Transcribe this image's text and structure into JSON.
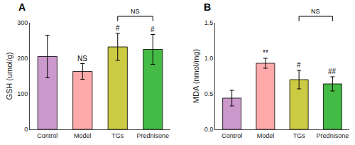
{
  "chart_data": [
    {
      "type": "bar",
      "title": "A",
      "categories": [
        "Control",
        "Model",
        "TGs",
        "Prednisone"
      ],
      "values": [
        205,
        163,
        232,
        225
      ],
      "errors": [
        60,
        22,
        38,
        42
      ],
      "colors": [
        "#cc99cc",
        "#ffaaaa",
        "#cccc44",
        "#44bb44"
      ],
      "ylabel": "GSH (umol/g)",
      "ylim": [
        0,
        300
      ],
      "yticks": [
        0,
        100,
        200,
        300
      ],
      "grid": false,
      "annotations": [
        {
          "text": "NS",
          "category": "Model"
        },
        {
          "text": "#",
          "category": "TGs"
        },
        {
          "text": "#",
          "category": "Prednisone"
        },
        {
          "text": "NS",
          "bracket": [
            "TGs",
            "Prednisone"
          ]
        }
      ]
    },
    {
      "type": "bar",
      "title": "B",
      "categories": [
        "Control",
        "Model",
        "TGs",
        "Prednisone"
      ],
      "values": [
        0.44,
        0.93,
        0.7,
        0.64
      ],
      "errors": [
        0.11,
        0.07,
        0.13,
        0.1
      ],
      "colors": [
        "#cc99cc",
        "#ffaaaa",
        "#cccc44",
        "#44bb44"
      ],
      "ylabel": "MDA (nmol/mg)",
      "ylim": [
        0.0,
        1.5
      ],
      "yticks": [
        {
          "value": 0,
          "label": "0.0"
        },
        0.5,
        {
          "value": 1,
          "label": "1.0"
        },
        1.5
      ],
      "grid": false,
      "annotations": [
        {
          "text": "**",
          "category": "Model"
        },
        {
          "text": "#",
          "category": "TGs"
        },
        {
          "text": "##",
          "category": "Prednisone"
        },
        {
          "text": "NS",
          "bracket": [
            "TGs",
            "Prednisone"
          ]
        }
      ]
    }
  ]
}
